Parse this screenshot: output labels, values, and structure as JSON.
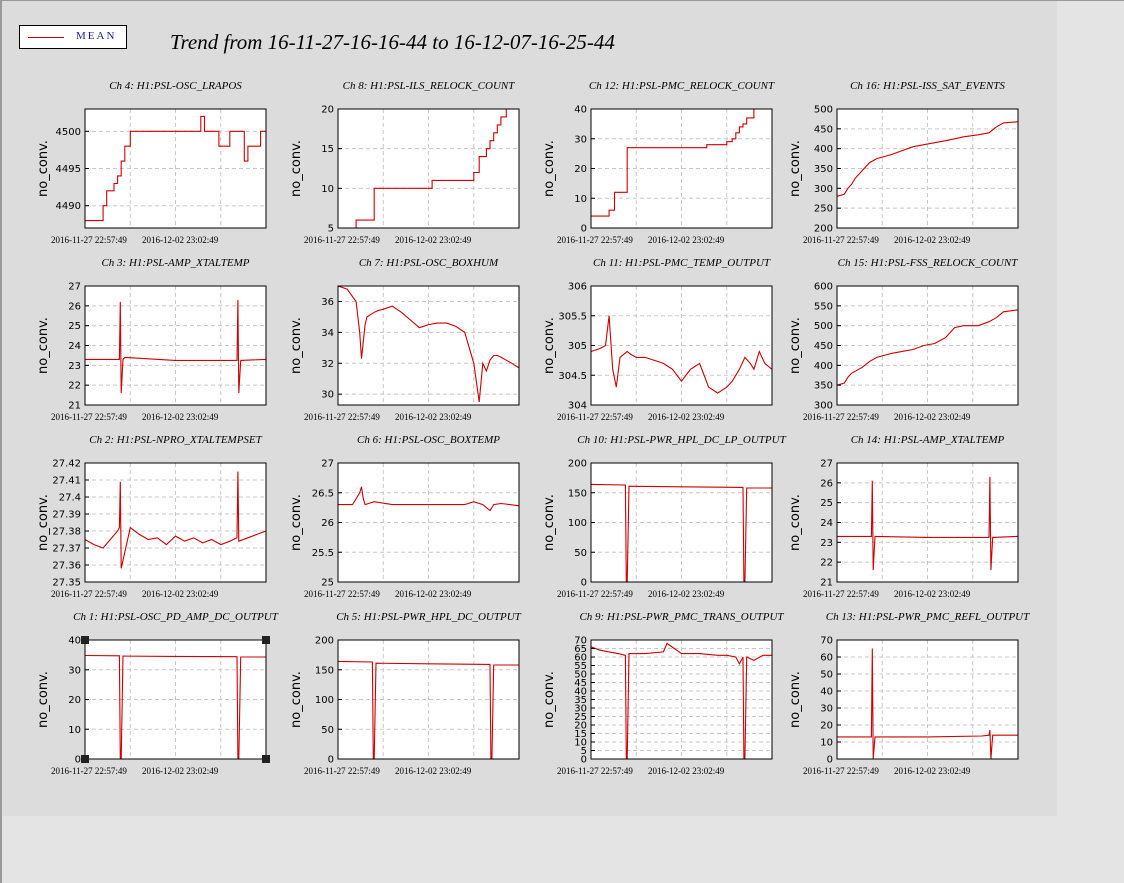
{
  "title": "Trend from 16-11-27-16-16-44 to 16-12-07-16-25-44",
  "legend": {
    "label": "MEAN",
    "color": "#d00000"
  },
  "chart_data": [
    {
      "type": "line",
      "title": "Ch 4: H1:PSL-OSC_LRAPOS",
      "ylabel": "no_conv.",
      "ylim": [
        4487,
        4503
      ],
      "yticks": [
        4490,
        4495,
        4500
      ],
      "xtick_labels": [
        "2016-11-27 22:57:49",
        "2016-12-02 23:02:49"
      ],
      "grid": true,
      "series": [
        {
          "name": "MEAN",
          "x": [
            0,
            0.1,
            0.1,
            0.12,
            0.12,
            0.16,
            0.16,
            0.18,
            0.18,
            0.2,
            0.2,
            0.22,
            0.22,
            0.25,
            0.25,
            0.5,
            0.5,
            0.64,
            0.64,
            0.66,
            0.66,
            0.74,
            0.74,
            0.8,
            0.8,
            0.82,
            0.82,
            0.88,
            0.88,
            0.9,
            0.9,
            0.94,
            0.94,
            0.97,
            0.97,
            1.0,
            1.0
          ],
          "y": [
            4488,
            4488,
            4490,
            4490,
            4492,
            4492,
            4493,
            4493,
            4494,
            4494,
            4496,
            4496,
            4498,
            4498,
            4500,
            4500,
            4500,
            4500,
            4502,
            4502,
            4500,
            4500,
            4498,
            4498,
            4500,
            4500,
            4500,
            4500,
            4496,
            4496,
            4498,
            4498,
            4498,
            4498,
            4500,
            4500,
            4500
          ]
        }
      ]
    },
    {
      "type": "line",
      "title": "Ch 8: H1:PSL-ILS_RELOCK_COUNT",
      "ylabel": "no_conv.",
      "ylim": [
        5,
        20
      ],
      "yticks": [
        5,
        10,
        15,
        20
      ],
      "xtick_labels": [
        "2016-11-27 22:57:49",
        "2016-12-02 23:02:49"
      ],
      "grid": true,
      "series": [
        {
          "name": "MEAN",
          "x": [
            0.1,
            0.1,
            0.2,
            0.2,
            0.52,
            0.52,
            0.75,
            0.75,
            0.78,
            0.78,
            0.82,
            0.82,
            0.84,
            0.84,
            0.86,
            0.86,
            0.88,
            0.88,
            0.9,
            0.9,
            0.93,
            0.93,
            1.0
          ],
          "y": [
            5,
            6,
            6,
            10,
            10,
            11,
            11,
            12,
            12,
            14,
            14,
            15,
            15,
            16,
            16,
            17,
            17,
            18,
            18,
            19,
            19,
            20,
            20
          ]
        }
      ]
    },
    {
      "type": "line",
      "title": "Ch 12: H1:PSL-PMC_RELOCK_COUNT",
      "ylabel": "no_conv.",
      "ylim": [
        0,
        40
      ],
      "yticks": [
        0,
        10,
        20,
        30,
        40
      ],
      "xtick_labels": [
        "2016-11-27 22:57:49",
        "2016-12-02 23:02:49"
      ],
      "grid": true,
      "series": [
        {
          "name": "MEAN",
          "x": [
            0,
            0.1,
            0.1,
            0.13,
            0.13,
            0.2,
            0.2,
            0.64,
            0.64,
            0.75,
            0.75,
            0.78,
            0.78,
            0.8,
            0.8,
            0.82,
            0.82,
            0.84,
            0.84,
            0.86,
            0.86,
            0.9,
            0.9,
            0.94
          ],
          "y": [
            4,
            4,
            6,
            6,
            12,
            12,
            27,
            27,
            28,
            28,
            29,
            29,
            30,
            30,
            32,
            32,
            34,
            34,
            35,
            35,
            37,
            37,
            40,
            40
          ]
        }
      ]
    },
    {
      "type": "line",
      "title": "Ch 16: H1:PSL-ISS_SAT_EVENTS",
      "ylabel": "no_conv.",
      "ylim": [
        200,
        500
      ],
      "yticks": [
        200,
        250,
        300,
        350,
        400,
        450,
        500
      ],
      "xtick_labels": [
        "2016-11-27 22:57:49",
        "2016-12-02 23:02:49"
      ],
      "grid": true,
      "series": [
        {
          "name": "MEAN",
          "x": [
            0,
            0.04,
            0.06,
            0.08,
            0.1,
            0.14,
            0.18,
            0.22,
            0.26,
            0.3,
            0.36,
            0.42,
            0.48,
            0.54,
            0.6,
            0.65,
            0.7,
            0.78,
            0.84,
            0.88,
            0.92,
            1.0
          ],
          "y": [
            280,
            285,
            300,
            310,
            325,
            345,
            365,
            375,
            380,
            385,
            395,
            405,
            410,
            415,
            420,
            425,
            430,
            435,
            440,
            455,
            465,
            468
          ]
        }
      ]
    },
    {
      "type": "line",
      "title": "Ch 3: H1:PSL-AMP_XTALTEMP",
      "ylabel": "no_conv.",
      "ylim": [
        21,
        27
      ],
      "yticks": [
        21,
        22,
        23,
        24,
        25,
        26,
        27
      ],
      "xtick_labels": [
        "2016-11-27 22:57:49",
        "2016-12-02 23:02:49"
      ],
      "grid": true,
      "series": [
        {
          "name": "MEAN",
          "x": [
            0,
            0.19,
            0.195,
            0.2,
            0.21,
            0.22,
            0.5,
            0.84,
            0.845,
            0.85,
            0.86,
            1.0
          ],
          "y": [
            23.3,
            23.3,
            26.2,
            21.6,
            23.3,
            23.4,
            23.25,
            23.25,
            26.3,
            21.6,
            23.25,
            23.3
          ]
        }
      ]
    },
    {
      "type": "line",
      "title": "Ch 7: H1:PSL-OSC_BOXHUM",
      "ylabel": "no_conv.",
      "ylim": [
        29.3,
        37
      ],
      "yticks": [
        30,
        32,
        34,
        36
      ],
      "xtick_labels": [
        "2016-11-27 22:57:49",
        "2016-12-02 23:02:49"
      ],
      "grid": true,
      "series": [
        {
          "name": "MEAN",
          "x": [
            0,
            0.05,
            0.1,
            0.12,
            0.13,
            0.15,
            0.16,
            0.2,
            0.22,
            0.25,
            0.3,
            0.35,
            0.4,
            0.45,
            0.5,
            0.55,
            0.6,
            0.65,
            0.7,
            0.75,
            0.78,
            0.8,
            0.82,
            0.84,
            0.86,
            0.88,
            0.9,
            0.93,
            0.96,
            1.0
          ],
          "y": [
            37,
            36.8,
            36,
            34,
            32.3,
            34.5,
            35,
            35.3,
            35.4,
            35.5,
            35.7,
            35.3,
            34.8,
            34.3,
            34.5,
            34.6,
            34.6,
            34.4,
            34,
            32,
            29.5,
            32,
            31.5,
            32.2,
            32.5,
            32.5,
            32.4,
            32.2,
            32,
            31.7
          ]
        }
      ]
    },
    {
      "type": "line",
      "title": "Ch 11: H1:PSL-PMC_TEMP_OUTPUT",
      "ylabel": "no_conv.",
      "ylim": [
        304,
        306
      ],
      "yticks": [
        304,
        304.5,
        305,
        305.5,
        306
      ],
      "xtick_labels": [
        "2016-11-27 22:57:49",
        "2016-12-02 23:02:49"
      ],
      "grid": true,
      "series": [
        {
          "name": "MEAN",
          "x": [
            0,
            0.05,
            0.08,
            0.1,
            0.12,
            0.14,
            0.16,
            0.18,
            0.2,
            0.22,
            0.25,
            0.3,
            0.35,
            0.4,
            0.45,
            0.5,
            0.55,
            0.6,
            0.65,
            0.7,
            0.75,
            0.78,
            0.8,
            0.82,
            0.85,
            0.88,
            0.9,
            0.93,
            0.96,
            1.0
          ],
          "y": [
            304.9,
            304.95,
            305.0,
            305.5,
            304.6,
            304.3,
            304.8,
            304.85,
            304.9,
            304.85,
            304.8,
            304.8,
            304.75,
            304.7,
            304.6,
            304.4,
            304.6,
            304.7,
            304.3,
            304.2,
            304.3,
            304.4,
            304.5,
            304.6,
            304.8,
            304.7,
            304.6,
            304.9,
            304.7,
            304.6
          ]
        }
      ]
    },
    {
      "type": "line",
      "title": "Ch 15: H1:PSL-FSS_RELOCK_COUNT",
      "ylabel": "no_conv.",
      "ylim": [
        300,
        600
      ],
      "yticks": [
        300,
        350,
        400,
        450,
        500,
        550,
        600
      ],
      "xtick_labels": [
        "2016-11-27 22:57:49",
        "2016-12-02 23:02:49"
      ],
      "grid": true,
      "series": [
        {
          "name": "MEAN",
          "x": [
            0,
            0.04,
            0.06,
            0.08,
            0.1,
            0.14,
            0.18,
            0.22,
            0.26,
            0.3,
            0.36,
            0.42,
            0.48,
            0.54,
            0.6,
            0.65,
            0.7,
            0.78,
            0.84,
            0.88,
            0.92,
            1.0
          ],
          "y": [
            350,
            355,
            370,
            380,
            385,
            395,
            410,
            420,
            425,
            430,
            435,
            440,
            450,
            455,
            470,
            495,
            500,
            500,
            510,
            520,
            535,
            540
          ]
        }
      ]
    },
    {
      "type": "line",
      "title": "Ch 2: H1:PSL-NPRO_XTALTEMPSET",
      "ylabel": "no_conv.",
      "ylim": [
        27.35,
        27.42
      ],
      "yticks": [
        27.35,
        27.36,
        27.37,
        27.38,
        27.39,
        27.4,
        27.41,
        27.42
      ],
      "xtick_labels": [
        "2016-11-27 22:57:49",
        "2016-12-02 23:02:49"
      ],
      "grid": true,
      "series": [
        {
          "name": "MEAN",
          "x": [
            0,
            0.05,
            0.1,
            0.14,
            0.18,
            0.19,
            0.195,
            0.2,
            0.25,
            0.3,
            0.35,
            0.4,
            0.45,
            0.5,
            0.55,
            0.6,
            0.65,
            0.7,
            0.75,
            0.8,
            0.84,
            0.845,
            0.85,
            0.9,
            0.95,
            1.0
          ],
          "y": [
            27.375,
            27.372,
            27.37,
            27.375,
            27.38,
            27.382,
            27.409,
            27.358,
            27.382,
            27.378,
            27.375,
            27.376,
            27.372,
            27.377,
            27.374,
            27.376,
            27.373,
            27.375,
            27.372,
            27.374,
            27.376,
            27.415,
            27.374,
            27.376,
            27.378,
            27.38
          ]
        }
      ]
    },
    {
      "type": "line",
      "title": "Ch 6: H1:PSL-OSC_BOXTEMP",
      "ylabel": "no_conv.",
      "ylim": [
        25,
        27
      ],
      "yticks": [
        25,
        25.5,
        26,
        26.5,
        27
      ],
      "xtick_labels": [
        "2016-11-27 22:57:49",
        "2016-12-02 23:02:49"
      ],
      "grid": true,
      "series": [
        {
          "name": "MEAN",
          "x": [
            0,
            0.08,
            0.12,
            0.13,
            0.14,
            0.15,
            0.2,
            0.3,
            0.4,
            0.5,
            0.6,
            0.7,
            0.75,
            0.8,
            0.84,
            0.85,
            0.86,
            0.9,
            0.95,
            1.0
          ],
          "y": [
            26.3,
            26.3,
            26.5,
            26.6,
            26.4,
            26.3,
            26.35,
            26.3,
            26.3,
            26.3,
            26.3,
            26.3,
            26.35,
            26.3,
            26.2,
            26.25,
            26.3,
            26.32,
            26.3,
            26.28
          ]
        }
      ]
    },
    {
      "type": "line",
      "title": "Ch 10: H1:PSL-PWR_HPL_DC_LP_OUTPUT",
      "ylabel": "no_conv.",
      "ylim": [
        0,
        200
      ],
      "yticks": [
        0,
        50,
        100,
        150,
        200
      ],
      "xtick_labels": [
        "2016-11-27 22:57:49",
        "2016-12-02 23:02:49"
      ],
      "grid": true,
      "series": [
        {
          "name": "MEAN",
          "x": [
            0,
            0.19,
            0.195,
            0.2,
            0.21,
            0.5,
            0.84,
            0.845,
            0.85,
            0.86,
            1.0
          ],
          "y": [
            164,
            163,
            0,
            0,
            161,
            160,
            159,
            0,
            0,
            158,
            158
          ]
        }
      ]
    },
    {
      "type": "line",
      "title": "Ch 14: H1:PSL-AMP_XTALTEMP",
      "ylabel": "no_conv.",
      "ylim": [
        21,
        27
      ],
      "yticks": [
        21,
        22,
        23,
        24,
        25,
        26,
        27
      ],
      "xtick_labels": [
        "2016-11-27 22:57:49",
        "2016-12-02 23:02:49"
      ],
      "grid": true,
      "series": [
        {
          "name": "MEAN",
          "x": [
            0,
            0.19,
            0.195,
            0.2,
            0.21,
            0.5,
            0.84,
            0.845,
            0.85,
            0.86,
            1.0
          ],
          "y": [
            23.3,
            23.3,
            26.1,
            21.6,
            23.3,
            23.25,
            23.25,
            26.3,
            21.6,
            23.25,
            23.3
          ]
        }
      ]
    },
    {
      "type": "line",
      "title": "Ch 1: H1:PSL-OSC_PD_AMP_DC_OUTPUT",
      "ylabel": "no_conv.",
      "ylim": [
        0,
        40
      ],
      "yticks": [
        0,
        10,
        20,
        30,
        40
      ],
      "xtick_labels": [
        "2016-11-27 22:57:49",
        "2016-12-02 23:02:49"
      ],
      "grid": true,
      "series": [
        {
          "name": "MEAN",
          "x": [
            0,
            0.19,
            0.195,
            0.2,
            0.21,
            0.5,
            0.84,
            0.845,
            0.85,
            0.86,
            1.0
          ],
          "y": [
            34.8,
            34.7,
            0,
            0,
            34.6,
            34.5,
            34.4,
            0,
            0,
            34.3,
            34.3
          ]
        }
      ]
    },
    {
      "type": "line",
      "title": "Ch 5: H1:PSL-PWR_HPL_DC_OUTPUT",
      "ylabel": "no_conv.",
      "ylim": [
        0,
        200
      ],
      "yticks": [
        0,
        50,
        100,
        150,
        200
      ],
      "xtick_labels": [
        "2016-11-27 22:57:49",
        "2016-12-02 23:02:49"
      ],
      "grid": true,
      "series": [
        {
          "name": "MEAN",
          "x": [
            0,
            0.19,
            0.195,
            0.2,
            0.21,
            0.5,
            0.84,
            0.845,
            0.85,
            0.86,
            1.0
          ],
          "y": [
            164,
            163,
            0,
            0,
            161,
            160,
            159,
            0,
            0,
            158,
            158
          ]
        }
      ]
    },
    {
      "type": "line",
      "title": "Ch 9: H1:PSL-PWR_PMC_TRANS_OUTPUT",
      "ylabel": "no_conv.",
      "ylim": [
        0,
        70
      ],
      "yticks": [
        0,
        5,
        10,
        15,
        20,
        25,
        30,
        35,
        40,
        45,
        50,
        55,
        60,
        65,
        70
      ],
      "xtick_labels": [
        "2016-11-27 22:57:49",
        "2016-12-02 23:02:49"
      ],
      "grid": true,
      "series": [
        {
          "name": "MEAN",
          "x": [
            0,
            0.05,
            0.1,
            0.15,
            0.19,
            0.195,
            0.2,
            0.21,
            0.3,
            0.4,
            0.42,
            0.5,
            0.6,
            0.7,
            0.75,
            0.8,
            0.82,
            0.84,
            0.845,
            0.85,
            0.86,
            0.9,
            0.95,
            1.0
          ],
          "y": [
            66,
            64,
            63,
            62,
            61,
            0,
            0,
            62,
            62,
            63,
            68,
            62,
            62,
            61,
            61,
            60,
            56,
            60,
            0,
            0,
            60,
            58,
            61,
            61
          ]
        }
      ]
    },
    {
      "type": "line",
      "title": "Ch 13: H1:PSL-PWR_PMC_REFL_OUTPUT",
      "ylabel": "no_conv.",
      "ylim": [
        0,
        70
      ],
      "yticks": [
        0,
        10,
        20,
        30,
        40,
        50,
        60,
        70
      ],
      "xtick_labels": [
        "2016-11-27 22:57:49",
        "2016-12-02 23:02:49"
      ],
      "grid": true,
      "series": [
        {
          "name": "MEAN",
          "x": [
            0,
            0.19,
            0.195,
            0.2,
            0.21,
            0.5,
            0.8,
            0.84,
            0.845,
            0.85,
            0.86,
            1.0
          ],
          "y": [
            13,
            13,
            65,
            0,
            13,
            13,
            13.5,
            14,
            17,
            0,
            14,
            14
          ]
        }
      ]
    }
  ]
}
